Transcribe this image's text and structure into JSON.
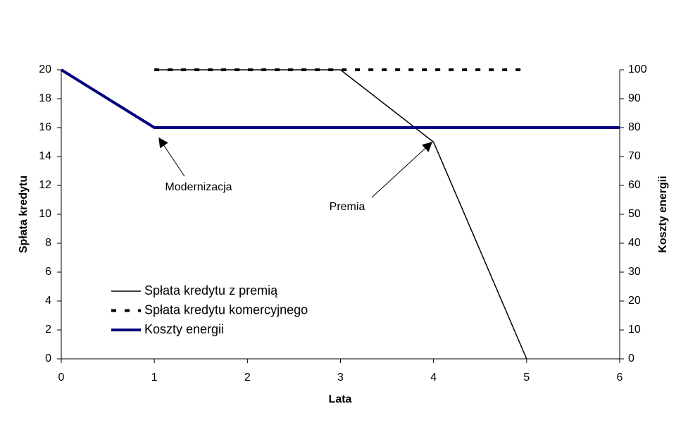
{
  "chart_data": {
    "type": "line",
    "x_label": "Lata",
    "y_label": "Spłata kredytu",
    "y2_label": "Koszty energii",
    "x": [
      0,
      1,
      2,
      3,
      4,
      5,
      6
    ],
    "xlim": [
      0,
      6
    ],
    "xticks": [
      0,
      1,
      2,
      3,
      4,
      5,
      6
    ],
    "ylim": [
      0,
      20
    ],
    "yticks": [
      0,
      2,
      4,
      6,
      8,
      10,
      12,
      14,
      16,
      18,
      20
    ],
    "y2lim": [
      0,
      100
    ],
    "y2ticks": [
      0,
      10,
      20,
      30,
      40,
      50,
      60,
      70,
      80,
      90,
      100
    ],
    "series": [
      {
        "name": "Spłata kredytu z premią",
        "color": "#000000",
        "style": "solid",
        "width": 1.5,
        "values": [
          null,
          20,
          20,
          20,
          15,
          0,
          null
        ]
      },
      {
        "name": "Spłata kredytu komercyjnego",
        "color": "#000000",
        "style": "dashed",
        "width": 4,
        "values": [
          null,
          20,
          20,
          20,
          20,
          20,
          null
        ]
      },
      {
        "name": "Koszty energii",
        "color": "#000080",
        "style": "solid",
        "width": 4,
        "axis": "y2",
        "values": [
          100,
          80,
          80,
          80,
          80,
          80,
          80
        ]
      }
    ],
    "annotations": [
      "Modernizacja",
      "Premia"
    ],
    "legend": "lower left"
  }
}
